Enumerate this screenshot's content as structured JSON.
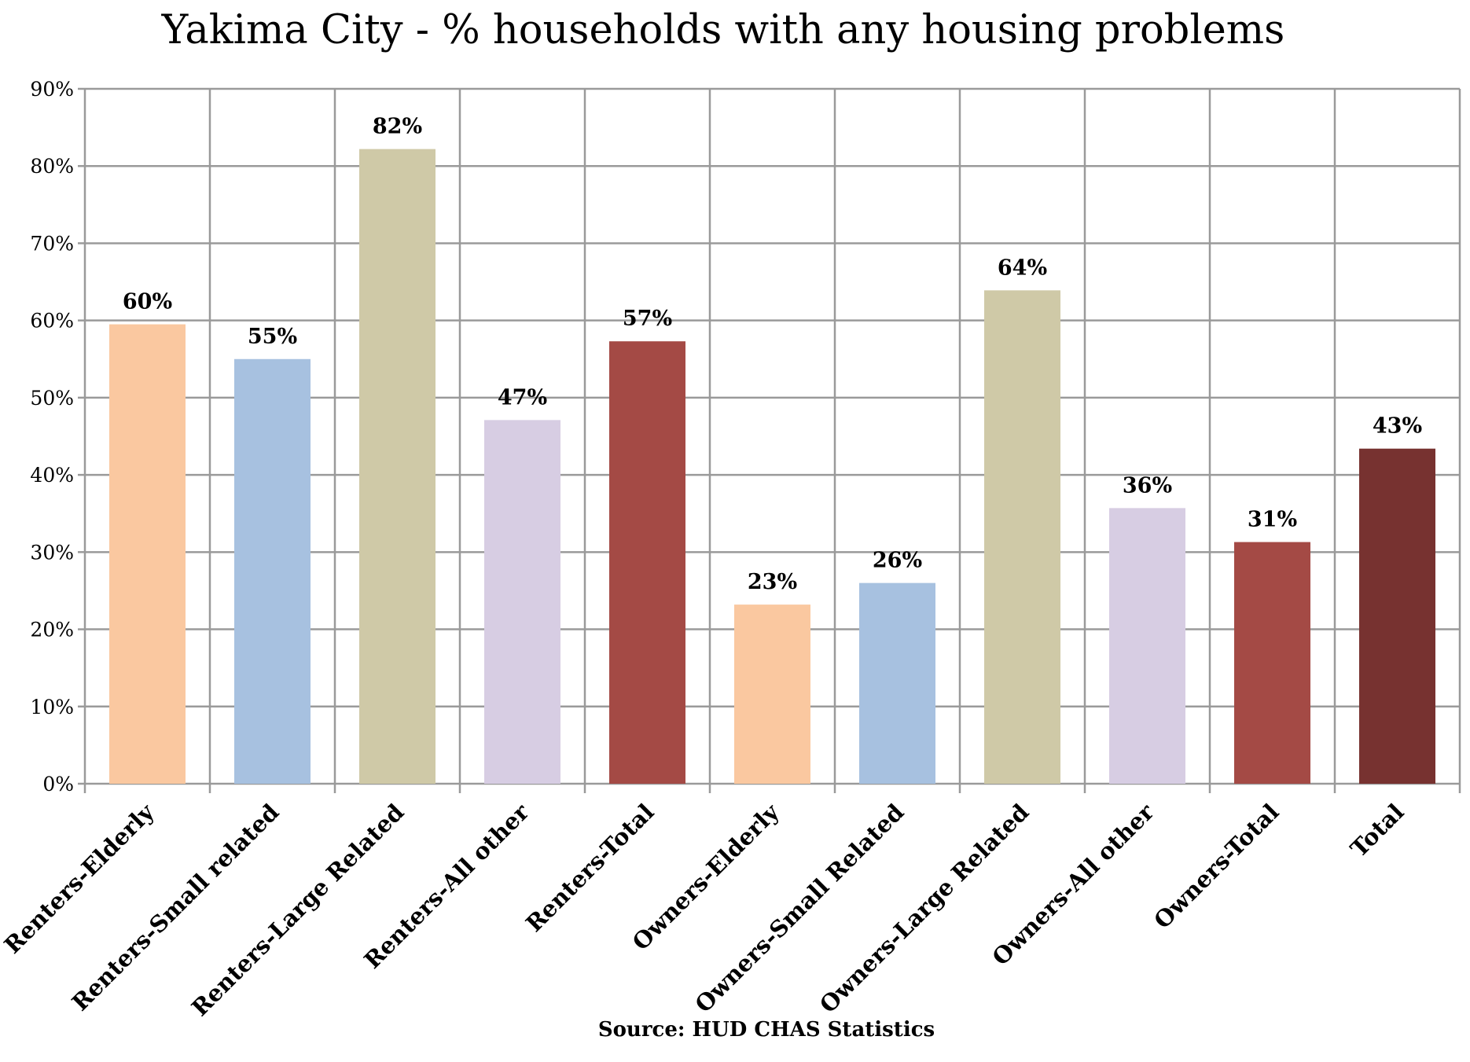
{
  "chart_data": {
    "type": "bar",
    "title": "Yakima City - % households with any housing problems",
    "source": "Source: HUD CHAS Statistics",
    "xlabel": "",
    "ylabel": "",
    "ylim": [
      0,
      90
    ],
    "y_ticks": [
      "0%",
      "10%",
      "20%",
      "30%",
      "40%",
      "50%",
      "60%",
      "70%",
      "80%",
      "90%"
    ],
    "grid": true,
    "legend": "none",
    "categories": [
      "Renters-Elderly",
      "Renters-Small related",
      "Renters-Large Related",
      "Renters-All other",
      "Renters-Total",
      "Owners-Elderly",
      "Owners-Small Related",
      "Owners-Large Related",
      "Owners-All other",
      "Owners-Total",
      "Total"
    ],
    "values": [
      59.5,
      55.0,
      82.2,
      47.1,
      57.3,
      23.2,
      26.0,
      63.9,
      35.7,
      31.3,
      43.4
    ],
    "data_labels": [
      "60%",
      "55%",
      "82%",
      "47%",
      "57%",
      "23%",
      "26%",
      "64%",
      "36%",
      "31%",
      "43%"
    ],
    "colors": [
      "#FAC8A0",
      "#A7C1E0",
      "#CFC9A7",
      "#D7CDE3",
      "#A44A45",
      "#FAC8A0",
      "#A7C1E0",
      "#CFC9A7",
      "#D7CDE3",
      "#A44A45",
      "#773230"
    ]
  }
}
